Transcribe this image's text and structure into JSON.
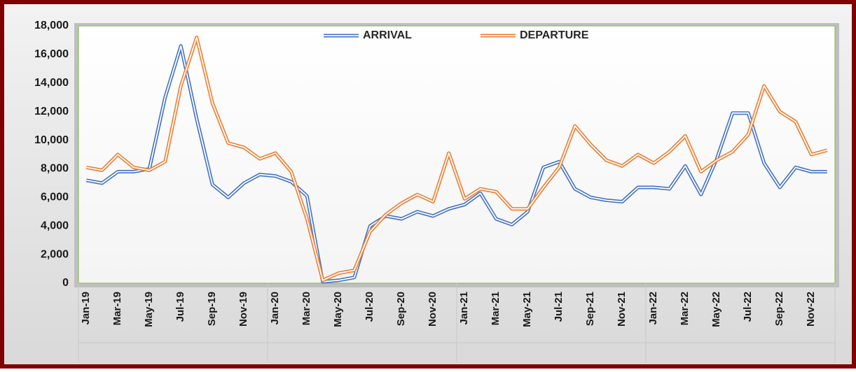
{
  "chart_data": {
    "type": "line",
    "categories": [
      "Jan-19",
      null,
      "Mar-19",
      null,
      "May-19",
      null,
      "Jul-19",
      null,
      "Sep-19",
      null,
      "Nov-19",
      null,
      "Jan-20",
      null,
      "Mar-20",
      null,
      "May-20",
      null,
      "Jul-20",
      null,
      "Sep-20",
      null,
      "Nov-20",
      null,
      "Jan-21",
      null,
      "Mar-21",
      null,
      "May-21",
      null,
      "Jul-21",
      null,
      "Sep-21",
      null,
      "Nov-21",
      null,
      "Jan-22",
      null,
      "Mar-22",
      null,
      "May-22",
      null,
      "Jul-22",
      null,
      "Sep-22",
      null,
      "Nov-22",
      null
    ],
    "series": [
      {
        "name": "ARRIVAL",
        "color": "#4472c4",
        "values": [
          7200,
          7000,
          7800,
          7800,
          8000,
          13000,
          16600,
          11500,
          6900,
          6000,
          7000,
          7600,
          7500,
          7100,
          6100,
          100,
          200,
          400,
          4000,
          4700,
          4500,
          5000,
          4700,
          5200,
          5500,
          6300,
          4500,
          4100,
          5000,
          8100,
          8500,
          6600,
          6000,
          5800,
          5700,
          6700,
          6700,
          6600,
          8200,
          6200,
          8700,
          11900,
          11900,
          8400,
          6700,
          8100,
          7800,
          7800
        ]
      },
      {
        "name": "DEPARTURE",
        "color": "#ed7d31",
        "values": [
          8100,
          7900,
          9000,
          8100,
          7900,
          8500,
          13800,
          17200,
          12600,
          9800,
          9500,
          8700,
          9100,
          7800,
          4500,
          200,
          700,
          900,
          3600,
          4800,
          5600,
          6200,
          5700,
          9100,
          5900,
          6600,
          6400,
          5200,
          5200,
          6700,
          8100,
          11000,
          9700,
          8600,
          8200,
          9000,
          8400,
          9200,
          10300,
          7800,
          8600,
          9200,
          10400,
          13800,
          12000,
          11300,
          9000,
          9300
        ]
      }
    ],
    "ylim": [
      0,
      18000
    ],
    "yticks": [
      0,
      {
        "value": 2000,
        "label": "2,000"
      },
      {
        "value": 4000,
        "label": "4,000"
      },
      {
        "value": 6000,
        "label": "6,000"
      },
      {
        "value": 8000,
        "label": "8,000"
      },
      {
        "value": 10000,
        "label": "10,000"
      },
      {
        "value": 12000,
        "label": "12,000"
      },
      {
        "value": 14000,
        "label": "14,000"
      },
      {
        "value": 16000,
        "label": "16,000"
      },
      {
        "value": 18000,
        "label": "18,000"
      }
    ],
    "legend": "top"
  }
}
